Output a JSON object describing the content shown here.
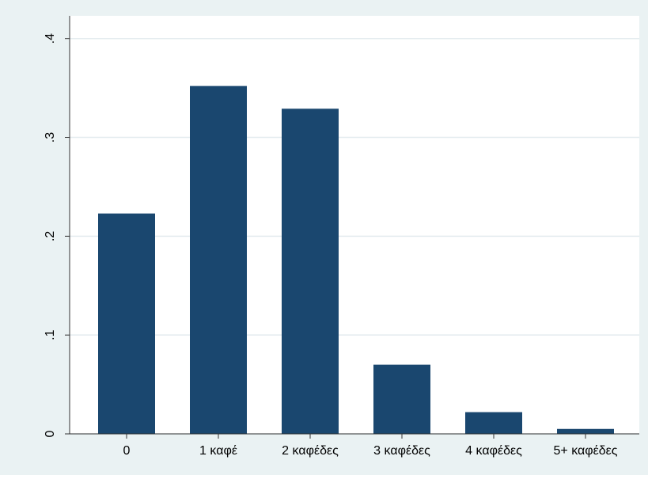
{
  "chart_data": {
    "type": "bar",
    "categories": [
      "0",
      "1 καφέ",
      "2 καφέδες",
      "3 καφέδες",
      "4 καφέδες",
      "5+ καφέδες"
    ],
    "values": [
      0.223,
      0.352,
      0.329,
      0.07,
      0.022,
      0.005
    ],
    "color": "#1a476f",
    "ylim": [
      0,
      0.423
    ],
    "yticks": [
      0,
      {
        "value": 0.1,
        "label": ".1"
      },
      {
        "value": 0.2,
        "label": ".2"
      },
      {
        "value": 0.3,
        "label": ".3"
      },
      {
        "value": 0.4,
        "label": ".4"
      }
    ],
    "grid": true
  }
}
